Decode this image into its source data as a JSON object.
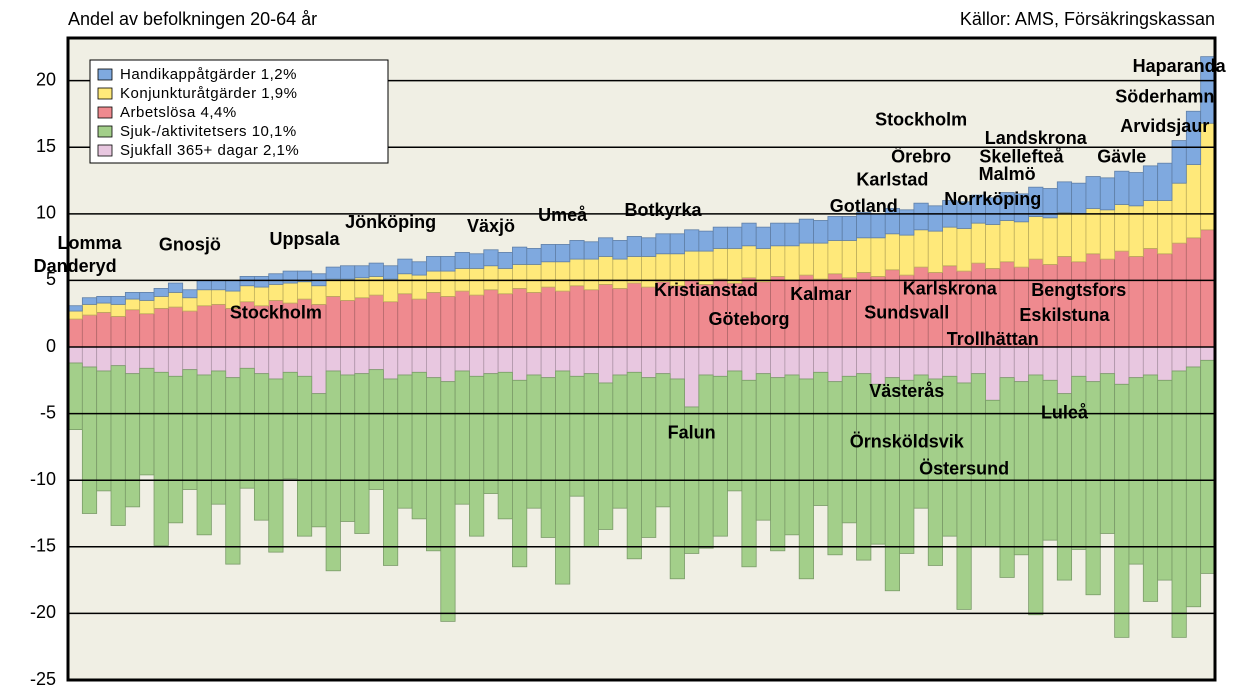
{
  "chart_data": {
    "type": "bar",
    "stacked": true,
    "subtitle": "Andel av befolkningen 20-64 år",
    "source": "Källor: AMS, Försäkringskassan",
    "ylim": [
      -25,
      23.2
    ],
    "yticks": [
      -25,
      -20,
      -15,
      -10,
      -5,
      0,
      5,
      10,
      15,
      20
    ],
    "grid": true,
    "legend": "upper left",
    "categories": [
      null,
      null,
      null,
      null,
      null,
      null,
      null,
      null,
      null,
      null,
      null,
      null,
      null,
      null,
      null,
      null,
      null,
      null,
      null,
      null,
      null,
      null,
      null,
      null,
      null,
      null,
      null,
      null,
      null,
      null,
      null,
      null,
      null,
      null,
      null,
      null,
      null,
      null,
      null,
      null,
      null,
      null,
      null,
      null,
      null,
      null,
      null,
      null,
      null,
      null,
      null,
      null,
      null,
      null,
      null,
      null,
      null,
      null,
      null,
      null,
      null,
      null,
      null,
      null,
      null,
      null,
      null,
      null,
      null,
      null,
      null,
      null,
      null,
      null,
      null,
      null,
      null,
      null,
      null,
      null
    ],
    "series": [
      {
        "name": "Handikappåtgärder  1,2%",
        "color": "#7fa9df",
        "values": [
          0.4,
          0.5,
          0.5,
          0.6,
          0.5,
          0.6,
          0.6,
          0.7,
          0.6,
          0.7,
          0.7,
          0.8,
          0.7,
          0.8,
          0.8,
          0.9,
          0.8,
          0.9,
          0.9,
          1.0,
          0.9,
          1.0,
          1.0,
          1.1,
          1.0,
          1.1,
          1.1,
          1.2,
          1.1,
          1.2,
          1.2,
          1.3,
          1.2,
          1.3,
          1.3,
          1.4,
          1.3,
          1.4,
          1.4,
          1.5,
          1.4,
          1.5,
          1.5,
          1.6,
          1.5,
          1.6,
          1.6,
          1.7,
          1.6,
          1.7,
          1.7,
          1.8,
          1.7,
          1.8,
          1.8,
          1.9,
          1.8,
          1.9,
          1.9,
          2.0,
          1.9,
          2.0,
          2.0,
          2.1,
          2.0,
          2.1,
          2.1,
          2.2,
          2.2,
          2.3,
          2.3,
          2.4,
          2.4,
          2.5,
          2.5,
          2.6,
          2.8,
          3.2,
          4.0,
          5.0
        ]
      },
      {
        "name": "Konjunkturåtgärder  1,9%",
        "color": "#ffe97a",
        "values": [
          0.6,
          0.8,
          0.7,
          0.9,
          0.8,
          1.0,
          0.9,
          1.1,
          1.0,
          1.2,
          1.1,
          1.3,
          1.2,
          1.4,
          1.2,
          1.5,
          1.3,
          1.4,
          1.3,
          1.6,
          1.5,
          1.4,
          1.7,
          1.5,
          1.8,
          1.6,
          1.9,
          1.7,
          2.0,
          1.8,
          1.9,
          1.8,
          2.1,
          1.9,
          2.2,
          2.0,
          2.3,
          2.1,
          2.2,
          2.0,
          2.3,
          2.1,
          2.4,
          2.2,
          2.5,
          2.3,
          2.6,
          2.4,
          2.5,
          2.3,
          2.6,
          2.4,
          2.7,
          2.5,
          2.8,
          2.6,
          2.9,
          2.7,
          3.0,
          2.8,
          3.1,
          2.9,
          3.2,
          3.0,
          3.3,
          3.1,
          3.4,
          3.2,
          3.5,
          3.3,
          3.6,
          3.4,
          3.7,
          3.5,
          3.8,
          3.6,
          4.0,
          4.5,
          5.5,
          8.0
        ]
      },
      {
        "name": "Arbetslösa           4,4%",
        "color": "#ef8a8f",
        "values": [
          2.1,
          2.4,
          2.6,
          2.3,
          2.8,
          2.5,
          2.9,
          3.0,
          2.7,
          3.1,
          3.2,
          2.9,
          3.4,
          3.1,
          3.5,
          3.3,
          3.6,
          3.2,
          3.8,
          3.5,
          3.7,
          3.9,
          3.4,
          4.0,
          3.6,
          4.1,
          3.8,
          4.2,
          3.9,
          4.3,
          4.0,
          4.4,
          4.1,
          4.5,
          4.2,
          4.6,
          4.3,
          4.7,
          4.4,
          4.8,
          4.5,
          4.9,
          4.6,
          5.0,
          4.7,
          5.1,
          4.8,
          5.2,
          4.9,
          5.3,
          5.0,
          5.4,
          5.1,
          5.5,
          5.2,
          5.6,
          5.3,
          5.8,
          5.4,
          6.0,
          5.6,
          6.1,
          5.7,
          6.3,
          5.9,
          6.4,
          6.0,
          6.6,
          6.2,
          6.8,
          6.4,
          7.0,
          6.6,
          7.2,
          6.8,
          7.4,
          7.0,
          7.8,
          8.2,
          8.8
        ]
      },
      {
        "name": "Sjuk-/aktivitetsers  10,1%",
        "color": "#a3cf8a",
        "values": [
          -5,
          -11,
          -9,
          -12,
          -10,
          -8,
          -13,
          -11,
          -9,
          -12,
          -10,
          -14,
          -9,
          -11,
          -13,
          -8,
          -12,
          -10,
          -15,
          -11,
          -12,
          -9,
          -14,
          -10,
          -11,
          -13,
          -18,
          -10,
          -12,
          -9,
          -11,
          -14,
          -10,
          -12,
          -16,
          -9,
          -13,
          -11,
          -10,
          -14,
          -12,
          -10,
          -15,
          -11,
          -13,
          -12,
          -9,
          -14,
          -11,
          -13,
          -12,
          -15,
          -10,
          -13,
          -11,
          -14,
          -12,
          -16,
          -13,
          -10,
          -14,
          -12,
          -17,
          -13,
          -11,
          -15,
          -13,
          -18,
          -12,
          -14,
          -13,
          -16,
          -12,
          -19,
          -14,
          -17,
          -15,
          -20,
          -18,
          -16
        ]
      },
      {
        "name": "Sjukfall 365+ dagar  2,1%",
        "color": "#e8c7e0",
        "values": [
          -1.2,
          -1.5,
          -1.8,
          -1.4,
          -2.0,
          -1.6,
          -1.9,
          -2.2,
          -1.7,
          -2.1,
          -1.8,
          -2.3,
          -1.6,
          -2.0,
          -2.4,
          -1.9,
          -2.2,
          -3.5,
          -1.8,
          -2.1,
          -2.0,
          -1.7,
          -2.4,
          -2.1,
          -1.9,
          -2.3,
          -2.6,
          -1.8,
          -2.2,
          -2.0,
          -1.9,
          -2.5,
          -2.1,
          -2.3,
          -1.8,
          -2.2,
          -2.0,
          -2.7,
          -2.1,
          -1.9,
          -2.3,
          -2.0,
          -2.4,
          -4.5,
          -2.1,
          -2.2,
          -1.8,
          -2.5,
          -2.0,
          -2.3,
          -2.1,
          -2.4,
          -1.9,
          -2.6,
          -2.2,
          -2.0,
          -2.8,
          -2.3,
          -2.5,
          -2.1,
          -2.4,
          -2.2,
          -2.7,
          -2.0,
          -4.0,
          -2.3,
          -2.6,
          -2.1,
          -2.5,
          -3.5,
          -2.2,
          -2.6,
          -2.0,
          -2.8,
          -2.3,
          -2.1,
          -2.5,
          -1.8,
          -1.5,
          -1.0
        ]
      }
    ],
    "annotations": [
      {
        "text": "Danderyd",
        "x": 0,
        "y": 6
      },
      {
        "text": "Lomma",
        "x": 1,
        "y": 7.7
      },
      {
        "text": "Gnosjö",
        "x": 8,
        "y": 7.6
      },
      {
        "text": "Stockholm",
        "x": 14,
        "y": 2.5
      },
      {
        "text": "Uppsala",
        "x": 16,
        "y": 8
      },
      {
        "text": "Jönköping",
        "x": 22,
        "y": 9.3
      },
      {
        "text": "Växjö",
        "x": 29,
        "y": 9
      },
      {
        "text": "Umeå",
        "x": 34,
        "y": 9.8
      },
      {
        "text": "Botkyrka",
        "x": 41,
        "y": 10.2
      },
      {
        "text": "Kristianstad",
        "x": 44,
        "y": 4.2
      },
      {
        "text": "Göteborg",
        "x": 47,
        "y": 2
      },
      {
        "text": "Kalmar",
        "x": 52,
        "y": 3.9
      },
      {
        "text": "Gotland",
        "x": 55,
        "y": 10.5
      },
      {
        "text": "Karlstad",
        "x": 57,
        "y": 12.5
      },
      {
        "text": "Stockholm",
        "x": 59,
        "y": 17
      },
      {
        "text": "Örebro",
        "x": 59,
        "y": 14.2
      },
      {
        "text": "Karlskrona",
        "x": 61,
        "y": 4.3
      },
      {
        "text": "Sundsvall",
        "x": 58,
        "y": 2.5
      },
      {
        "text": "Trollhättan",
        "x": 64,
        "y": 0.5
      },
      {
        "text": "Norrköping",
        "x": 64,
        "y": 11
      },
      {
        "text": "Malmö",
        "x": 65,
        "y": 12.9
      },
      {
        "text": "Skellefteå",
        "x": 66,
        "y": 14.2
      },
      {
        "text": "Landskrona",
        "x": 67,
        "y": 15.6
      },
      {
        "text": "Bengtsfors",
        "x": 70,
        "y": 4.2
      },
      {
        "text": "Eskilstuna",
        "x": 69,
        "y": 2.3
      },
      {
        "text": "Gävle",
        "x": 73,
        "y": 14.2
      },
      {
        "text": "Arvidsjaur",
        "x": 76,
        "y": 16.5
      },
      {
        "text": "Söderhamn",
        "x": 76,
        "y": 18.7
      },
      {
        "text": "Haparanda",
        "x": 77,
        "y": 21
      },
      {
        "text": "Falun",
        "x": 43,
        "y": -6.5
      },
      {
        "text": "Västerås",
        "x": 58,
        "y": -3.4
      },
      {
        "text": "Örnsköldsvik",
        "x": 58,
        "y": -7.2
      },
      {
        "text": "Östersund",
        "x": 62,
        "y": -9.2
      },
      {
        "text": "Luleå",
        "x": 69,
        "y": -5
      }
    ]
  }
}
